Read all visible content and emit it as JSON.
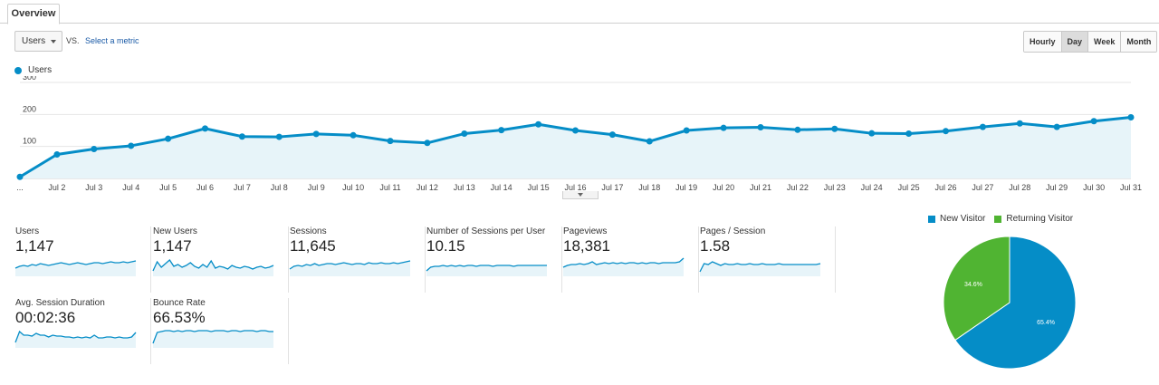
{
  "tab": {
    "label": "Overview"
  },
  "controls": {
    "metric_select": "Users",
    "vs_label": "VS.",
    "select_metric_link": "Select a metric",
    "granularity": [
      "Hourly",
      "Day",
      "Week",
      "Month"
    ],
    "granularity_active": "Day"
  },
  "colors": {
    "series": "#058dc7",
    "area": "#e7f4f9",
    "new_visitor": "#058dc7",
    "returning_visitor": "#50b432",
    "grid": "#e6e6e6"
  },
  "chart_data": [
    {
      "type": "area",
      "series": [
        {
          "name": "Users",
          "values": [
            5,
            75,
            92,
            102,
            124,
            156,
            131,
            130,
            139,
            135,
            117,
            111,
            140,
            151,
            169,
            150,
            137,
            116,
            150,
            158,
            160,
            152,
            155,
            141,
            140,
            148,
            161,
            172,
            161,
            179,
            191
          ]
        }
      ],
      "categories": [
        "...",
        "Jul 2",
        "Jul 3",
        "Jul 4",
        "Jul 5",
        "Jul 6",
        "Jul 7",
        "Jul 8",
        "Jul 9",
        "Jul 10",
        "Jul 11",
        "Jul 12",
        "Jul 13",
        "Jul 14",
        "Jul 15",
        "Jul 16",
        "Jul 17",
        "Jul 18",
        "Jul 19",
        "Jul 20",
        "Jul 21",
        "Jul 22",
        "Jul 23",
        "Jul 24",
        "Jul 25",
        "Jul 26",
        "Jul 27",
        "Jul 28",
        "Jul 29",
        "Jul 30",
        "Jul 31"
      ],
      "yticks": [
        "100",
        "200",
        "300"
      ],
      "ylim": [
        0,
        300
      ],
      "legend": "top-left",
      "grid": true
    },
    {
      "type": "line",
      "name": "users_sparkline",
      "values": [
        7,
        9,
        10,
        9,
        11,
        10,
        12,
        11,
        10,
        11,
        12,
        13,
        12,
        11,
        12,
        13,
        12,
        11,
        12,
        13,
        13,
        12,
        13,
        14,
        13,
        13,
        14,
        13,
        14,
        15
      ]
    },
    {
      "type": "line",
      "name": "new_users_sparkline",
      "values": [
        4,
        14,
        8,
        12,
        16,
        9,
        11,
        8,
        10,
        13,
        9,
        7,
        11,
        8,
        15,
        7,
        9,
        8,
        6,
        10,
        8,
        7,
        9,
        8,
        6,
        8,
        9,
        7,
        8,
        10
      ]
    },
    {
      "type": "line",
      "name": "sessions_sparkline",
      "values": [
        6,
        9,
        10,
        9,
        11,
        10,
        12,
        10,
        11,
        12,
        12,
        11,
        12,
        13,
        12,
        11,
        12,
        12,
        11,
        13,
        12,
        12,
        13,
        12,
        12,
        13,
        12,
        13,
        14,
        15
      ]
    },
    {
      "type": "line",
      "name": "sessions_per_user_sparkline",
      "values": [
        4,
        8,
        9,
        9,
        10,
        9,
        10,
        9,
        10,
        9,
        10,
        10,
        9,
        10,
        10,
        10,
        9,
        10,
        10,
        10,
        10,
        9,
        10,
        10,
        10,
        10,
        10,
        10,
        10,
        10
      ]
    },
    {
      "type": "line",
      "name": "pageviews_sparkline",
      "values": [
        8,
        10,
        11,
        11,
        12,
        11,
        12,
        14,
        11,
        12,
        13,
        12,
        13,
        12,
        13,
        12,
        13,
        13,
        12,
        13,
        12,
        13,
        13,
        12,
        13,
        13,
        13,
        13,
        14,
        18
      ]
    },
    {
      "type": "line",
      "name": "pages_per_session_sparkline",
      "values": [
        3,
        12,
        11,
        14,
        12,
        10,
        12,
        11,
        11,
        12,
        11,
        11,
        12,
        11,
        11,
        12,
        11,
        11,
        11,
        12,
        11,
        11,
        11,
        11,
        11,
        11,
        11,
        11,
        11,
        12
      ]
    },
    {
      "type": "line",
      "name": "avg_session_duration_sparkline",
      "values": [
        4,
        16,
        12,
        12,
        11,
        14,
        12,
        12,
        10,
        12,
        11,
        11,
        10,
        10,
        9,
        10,
        9,
        10,
        9,
        12,
        9,
        9,
        10,
        10,
        9,
        10,
        9,
        9,
        10,
        15
      ]
    },
    {
      "type": "line",
      "name": "bounce_rate_sparkline",
      "values": [
        3,
        15,
        16,
        17,
        17,
        16,
        17,
        16,
        17,
        17,
        16,
        17,
        17,
        17,
        16,
        17,
        17,
        17,
        16,
        17,
        17,
        16,
        17,
        17,
        17,
        16,
        17,
        17,
        16,
        16
      ]
    },
    {
      "type": "pie",
      "labels": [
        "New Visitor",
        "Returning Visitor"
      ],
      "values": [
        65.4,
        34.6
      ],
      "value_labels": [
        "65.4%",
        "34.6%"
      ],
      "legend": "top"
    }
  ],
  "metrics": [
    {
      "label": "Users",
      "value": "1,147"
    },
    {
      "label": "New Users",
      "value": "1,147"
    },
    {
      "label": "Sessions",
      "value": "11,645"
    },
    {
      "label": "Number of Sessions per User",
      "value": "10.15"
    },
    {
      "label": "Pageviews",
      "value": "18,381"
    },
    {
      "label": "Pages / Session",
      "value": "1.58"
    },
    {
      "label": "Avg. Session Duration",
      "value": "00:02:36"
    },
    {
      "label": "Bounce Rate",
      "value": "66.53%"
    }
  ]
}
